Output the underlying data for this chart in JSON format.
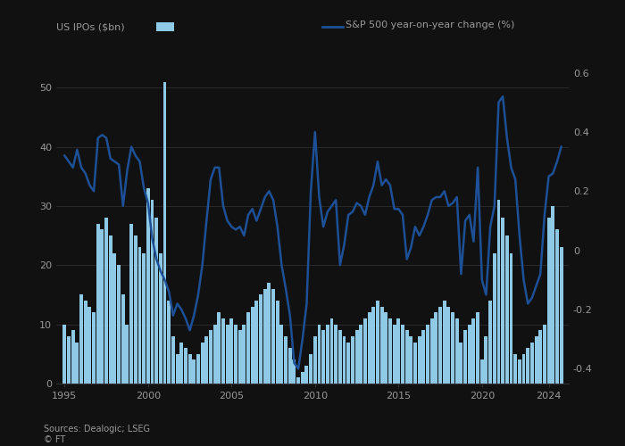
{
  "background_color": "#111111",
  "plot_bg_color": "#111111",
  "bar_color": "#8ecae6",
  "bar_edge_color": "#8ecae6",
  "line_color": "#1d5096",
  "text_color": "#999999",
  "title_color": "#cccccc",
  "grid_color": "#333333",
  "ylabel_left": "US IPOs ($bn)",
  "legend_line_label": "S&P 500 year-on-year change (%)",
  "source_text": "Sources: Dealogic; LSEG\n© FT",
  "ylim_left": [
    0,
    55
  ],
  "ylim_right": [
    -0.45,
    0.65
  ],
  "yticks_left": [
    0,
    10,
    20,
    30,
    40,
    50
  ],
  "ytick_labels_left": [
    "0",
    "10",
    "20",
    "30",
    "40",
    "50"
  ],
  "yticks_right": [
    -0.4,
    -0.2,
    0.0,
    0.2,
    0.4,
    0.6
  ],
  "ytick_labels_right": [
    "-0.4",
    "-0.2",
    "0",
    "0.2",
    "0.4",
    "0.6"
  ],
  "xlim": [
    1994.5,
    2025.2
  ],
  "year_ticks": [
    1995,
    2000,
    2005,
    2010,
    2015,
    2020,
    2024
  ],
  "x_numeric": [
    1995.0,
    1995.25,
    1995.5,
    1995.75,
    1996.0,
    1996.25,
    1996.5,
    1996.75,
    1997.0,
    1997.25,
    1997.5,
    1997.75,
    1998.0,
    1998.25,
    1998.5,
    1998.75,
    1999.0,
    1999.25,
    1999.5,
    1999.75,
    2000.0,
    2000.25,
    2000.5,
    2000.75,
    2001.0,
    2001.25,
    2001.5,
    2001.75,
    2002.0,
    2002.25,
    2002.5,
    2002.75,
    2003.0,
    2003.25,
    2003.5,
    2003.75,
    2004.0,
    2004.25,
    2004.5,
    2004.75,
    2005.0,
    2005.25,
    2005.5,
    2005.75,
    2006.0,
    2006.25,
    2006.5,
    2006.75,
    2007.0,
    2007.25,
    2007.5,
    2007.75,
    2008.0,
    2008.25,
    2008.5,
    2008.75,
    2009.0,
    2009.25,
    2009.5,
    2009.75,
    2010.0,
    2010.25,
    2010.5,
    2010.75,
    2011.0,
    2011.25,
    2011.5,
    2011.75,
    2012.0,
    2012.25,
    2012.5,
    2012.75,
    2013.0,
    2013.25,
    2013.5,
    2013.75,
    2014.0,
    2014.25,
    2014.5,
    2014.75,
    2015.0,
    2015.25,
    2015.5,
    2015.75,
    2016.0,
    2016.25,
    2016.5,
    2016.75,
    2017.0,
    2017.25,
    2017.5,
    2017.75,
    2018.0,
    2018.25,
    2018.5,
    2018.75,
    2019.0,
    2019.25,
    2019.5,
    2019.75,
    2020.0,
    2020.25,
    2020.5,
    2020.75,
    2021.0,
    2021.25,
    2021.5,
    2021.75,
    2022.0,
    2022.25,
    2022.5,
    2022.75,
    2023.0,
    2023.25,
    2023.5,
    2023.75,
    2024.0,
    2024.25,
    2024.5,
    2024.75
  ],
  "ipo_volumes": [
    10,
    8,
    9,
    7,
    15,
    14,
    13,
    12,
    27,
    26,
    28,
    25,
    22,
    20,
    15,
    10,
    27,
    25,
    23,
    22,
    33,
    31,
    28,
    22,
    51,
    14,
    8,
    5,
    7,
    6,
    5,
    4,
    5,
    7,
    8,
    9,
    10,
    12,
    11,
    10,
    11,
    10,
    9,
    10,
    12,
    13,
    14,
    15,
    16,
    17,
    16,
    14,
    10,
    8,
    6,
    4,
    1,
    2,
    3,
    5,
    8,
    10,
    9,
    10,
    11,
    10,
    9,
    8,
    7,
    8,
    9,
    10,
    11,
    12,
    13,
    14,
    13,
    12,
    11,
    10,
    11,
    10,
    9,
    8,
    7,
    8,
    9,
    10,
    11,
    12,
    13,
    14,
    13,
    12,
    11,
    7,
    9,
    10,
    11,
    12,
    4,
    8,
    14,
    22,
    31,
    28,
    25,
    22,
    5,
    4,
    5,
    6,
    7,
    8,
    9,
    10,
    28,
    30,
    26,
    23
  ],
  "sp500_yoy": [
    0.32,
    0.3,
    0.28,
    0.34,
    0.28,
    0.26,
    0.22,
    0.2,
    0.38,
    0.39,
    0.38,
    0.31,
    0.3,
    0.29,
    0.15,
    0.27,
    0.35,
    0.32,
    0.3,
    0.21,
    0.16,
    0.04,
    -0.03,
    -0.07,
    -0.1,
    -0.14,
    -0.22,
    -0.18,
    -0.2,
    -0.23,
    -0.27,
    -0.22,
    -0.15,
    -0.05,
    0.1,
    0.24,
    0.28,
    0.28,
    0.15,
    0.1,
    0.08,
    0.07,
    0.08,
    0.05,
    0.12,
    0.14,
    0.1,
    0.14,
    0.18,
    0.2,
    0.17,
    0.08,
    -0.05,
    -0.13,
    -0.22,
    -0.38,
    -0.4,
    -0.3,
    -0.18,
    0.2,
    0.4,
    0.18,
    0.08,
    0.13,
    0.15,
    0.17,
    -0.05,
    0.02,
    0.12,
    0.13,
    0.16,
    0.15,
    0.12,
    0.18,
    0.22,
    0.3,
    0.22,
    0.24,
    0.22,
    0.14,
    0.14,
    0.12,
    -0.03,
    0.01,
    0.08,
    0.05,
    0.08,
    0.12,
    0.17,
    0.18,
    0.18,
    0.2,
    0.15,
    0.16,
    0.18,
    -0.08,
    0.1,
    0.12,
    0.03,
    0.28,
    -0.1,
    -0.15,
    0.08,
    0.15,
    0.5,
    0.52,
    0.38,
    0.28,
    0.24,
    0.05,
    -0.1,
    -0.18,
    -0.16,
    -0.12,
    -0.08,
    0.12,
    0.25,
    0.26,
    0.3,
    0.35
  ]
}
